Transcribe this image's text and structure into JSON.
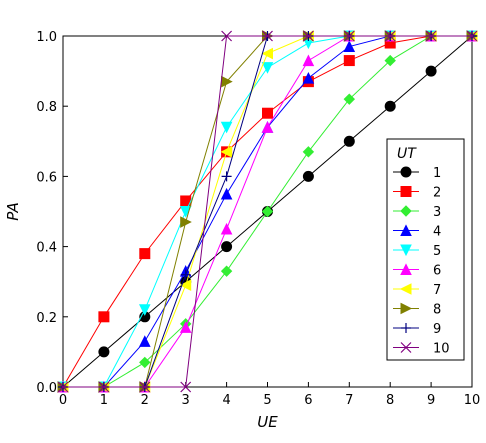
{
  "chart_data": {
    "type": "line",
    "xlabel": "UE",
    "ylabel": "PA",
    "xlim": [
      0,
      10
    ],
    "ylim": [
      0,
      1
    ],
    "x_ticks": [
      0,
      1,
      2,
      3,
      4,
      5,
      6,
      7,
      8,
      9,
      10
    ],
    "y_ticks": [
      "0.0",
      "0.2",
      "0.4",
      "0.6",
      "0.8",
      "1.0"
    ],
    "grid": false,
    "legend": {
      "title": "UT",
      "position": "right"
    },
    "series": [
      {
        "name": "1",
        "color": "#000000",
        "marker": "circle",
        "x": [
          0,
          1,
          2,
          3,
          4,
          5,
          6,
          7,
          8,
          9,
          10
        ],
        "y": [
          0,
          0.1,
          0.2,
          0.3,
          0.4,
          0.5,
          0.6,
          0.7,
          0.8,
          0.9,
          1.0
        ]
      },
      {
        "name": "2",
        "color": "#ff0000",
        "marker": "square",
        "x": [
          0,
          1,
          2,
          3,
          4,
          5,
          6,
          7,
          8,
          9,
          10
        ],
        "y": [
          0,
          0.2,
          0.38,
          0.53,
          0.67,
          0.78,
          0.87,
          0.93,
          0.98,
          1.0,
          1.0
        ]
      },
      {
        "name": "3",
        "color": "#33ee33",
        "marker": "diamond",
        "x": [
          0,
          1,
          2,
          3,
          4,
          5,
          6,
          7,
          8,
          9,
          10
        ],
        "y": [
          0,
          0,
          0.07,
          0.18,
          0.33,
          0.5,
          0.67,
          0.82,
          0.93,
          1.0,
          1.0
        ]
      },
      {
        "name": "4",
        "color": "#0000ff",
        "marker": "triangle-up",
        "x": [
          0,
          1,
          2,
          3,
          4,
          5,
          6,
          7,
          8,
          9,
          10
        ],
        "y": [
          0,
          0,
          0.13,
          0.33,
          0.55,
          0.74,
          0.88,
          0.97,
          1.0,
          1.0,
          1.0
        ]
      },
      {
        "name": "5",
        "color": "#00ffff",
        "marker": "triangle-down",
        "x": [
          0,
          1,
          2,
          3,
          4,
          5,
          6,
          7,
          8,
          9,
          10
        ],
        "y": [
          0,
          0,
          0.22,
          0.5,
          0.74,
          0.91,
          0.98,
          1.0,
          1.0,
          1.0,
          1.0
        ]
      },
      {
        "name": "6",
        "color": "#ff00ff",
        "marker": "triangle-up",
        "x": [
          0,
          1,
          2,
          3,
          4,
          5,
          6,
          7,
          8,
          9,
          10
        ],
        "y": [
          0,
          0,
          0,
          0.17,
          0.45,
          0.74,
          0.93,
          1.0,
          1.0,
          1.0,
          1.0
        ]
      },
      {
        "name": "7",
        "color": "#ffff00",
        "marker": "triangle-left",
        "x": [
          0,
          1,
          2,
          3,
          4,
          5,
          6,
          7,
          8,
          9,
          10
        ],
        "y": [
          0,
          0,
          0,
          0.29,
          0.67,
          0.95,
          1.0,
          1.0,
          1.0,
          1.0,
          1.0
        ]
      },
      {
        "name": "8",
        "color": "#808000",
        "marker": "triangle-right",
        "x": [
          0,
          1,
          2,
          3,
          4,
          5,
          6,
          7,
          8,
          9,
          10
        ],
        "y": [
          0,
          0,
          0,
          0.47,
          0.87,
          1.0,
          1.0,
          1.0,
          1.0,
          1.0,
          1.0
        ]
      },
      {
        "name": "9",
        "color": "#000080",
        "marker": "plus",
        "x": [
          0,
          1,
          2,
          3,
          4,
          5,
          6,
          7,
          8,
          9,
          10
        ],
        "y": [
          0,
          0,
          0,
          0.32,
          0.6,
          1.0,
          1.0,
          1.0,
          1.0,
          1.0,
          1.0
        ]
      },
      {
        "name": "10",
        "color": "#800080",
        "marker": "cross",
        "x": [
          0,
          1,
          2,
          3,
          4,
          5,
          6,
          7,
          8,
          9,
          10
        ],
        "y": [
          0,
          0,
          0,
          0,
          1.0,
          1.0,
          1.0,
          1.0,
          1.0,
          1.0,
          1.0
        ]
      }
    ]
  }
}
